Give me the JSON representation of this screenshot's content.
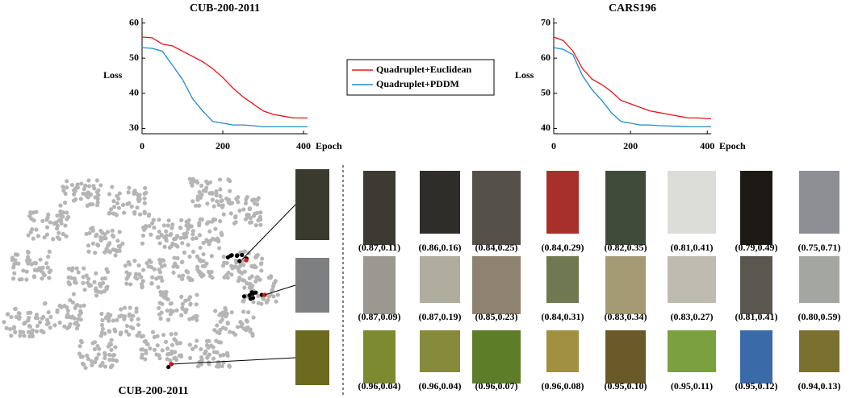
{
  "chart_data": [
    {
      "type": "line",
      "title": "CUB-200-2011",
      "x_label": "Epoch",
      "y_label": "Loss",
      "x": [
        0,
        25,
        50,
        75,
        100,
        125,
        150,
        175,
        200,
        225,
        250,
        275,
        300,
        325,
        350,
        375,
        400,
        410
      ],
      "series": [
        {
          "name": "Quadruplet+Euclidean",
          "color": "#e8141b",
          "values": [
            56,
            55.8,
            54,
            53.5,
            52,
            50.5,
            49,
            47,
            44.5,
            41.5,
            39,
            37,
            35,
            34,
            33.5,
            33,
            33,
            33
          ]
        },
        {
          "name": "Quadruplet+PDDM",
          "color": "#1f8bc9",
          "values": [
            53,
            52.8,
            52,
            48,
            44,
            38.5,
            35,
            32,
            31.5,
            31,
            31,
            30.8,
            30.5,
            30.5,
            30.5,
            30.5,
            30.5,
            30.5
          ]
        }
      ],
      "xlim": [
        0,
        410
      ],
      "xticks": [
        0,
        200,
        400
      ],
      "ylim": [
        28.5,
        61.5
      ],
      "yticks": [
        30,
        40,
        50,
        60
      ]
    },
    {
      "type": "line",
      "title": "CARS196",
      "x_label": "Epoch",
      "y_label": "Loss",
      "x": [
        0,
        25,
        50,
        75,
        100,
        125,
        150,
        175,
        200,
        225,
        250,
        275,
        300,
        325,
        350,
        375,
        400,
        410
      ],
      "series": [
        {
          "color": "#e8141b",
          "values": [
            66,
            65,
            62,
            57,
            54,
            52.5,
            50.5,
            48,
            47,
            46,
            45,
            44.5,
            44,
            43.5,
            43,
            43,
            42.8,
            42.8
          ]
        },
        {
          "color": "#1f8bc9",
          "values": [
            63,
            62.5,
            61,
            55,
            51,
            48,
            44.5,
            42,
            41.5,
            41,
            41,
            40.8,
            40.7,
            40.6,
            40.5,
            40.5,
            40.5,
            40.5
          ]
        }
      ],
      "xlim": [
        0,
        410
      ],
      "xticks": [
        0,
        200,
        400
      ],
      "ylim": [
        38.5,
        71.5
      ],
      "yticks": [
        40,
        50,
        60,
        70
      ]
    }
  ],
  "embedding_title": "CUB-200-2011",
  "retrieval": {
    "rows": [
      [
        "(0.87,0.11)",
        "(0.86,0.16)",
        "(0.84,0.25)",
        "(0.84,0.29)",
        "(0.82,0.35)",
        "(0.81,0.41)",
        "(0.79,0.49)",
        "(0.75,0.71)"
      ],
      [
        "(0.87,0.09)",
        "(0.87,0.19)",
        "(0.85,0.23)",
        "(0.84,0.31)",
        "(0.83,0.34)",
        "(0.83,0.27)",
        "(0.81,0.41)",
        "(0.80,0.59)"
      ],
      [
        "(0.96,0.04)",
        "(0.96,0.04)",
        "(0.96,0.07)",
        "(0.96,0.08)",
        "(0.95,0.10)",
        "(0.95,0.11)",
        "(0.95,0.12)",
        "(0.94,0.13)"
      ]
    ]
  }
}
